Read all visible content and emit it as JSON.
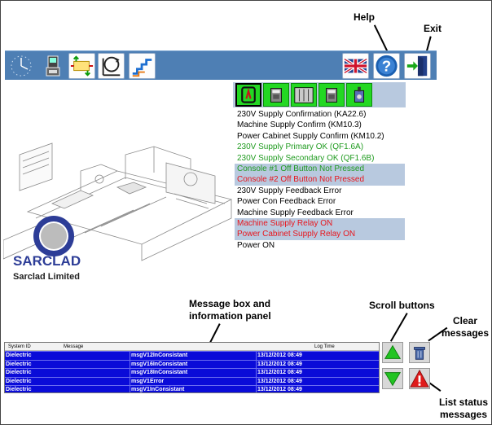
{
  "callouts": {
    "help": "Help",
    "exit": "Exit",
    "message_box": "Message box and information panel",
    "scroll_buttons": "Scroll buttons",
    "clear_messages": "Clear messages",
    "list_status": "List status messages"
  },
  "toolbar": {
    "items": [
      {
        "icon": "clock-icon"
      },
      {
        "icon": "console-icon"
      },
      {
        "icon": "transfer-icon"
      },
      {
        "icon": "rotation-process-icon"
      },
      {
        "icon": "level-chart-icon"
      }
    ],
    "right_items": [
      {
        "icon": "uk-flag-icon"
      },
      {
        "icon": "help-icon"
      },
      {
        "icon": "exit-door-icon"
      }
    ]
  },
  "tabs": [
    {
      "icon": "power-supply-icon",
      "selected": true
    },
    {
      "icon": "cabinet-icon",
      "selected": false
    },
    {
      "icon": "panel-icon",
      "selected": false
    },
    {
      "icon": "cabinet-icon",
      "selected": false
    },
    {
      "icon": "drive-icon",
      "selected": false
    }
  ],
  "status_items": [
    {
      "text": "230V Supply Confirmation (KA22.6)",
      "state": "normal",
      "highlight": false
    },
    {
      "text": "Machine Supply Confirm (KM10.3)",
      "state": "normal",
      "highlight": false
    },
    {
      "text": "Power Cabinet Supply Confirm (KM10.2)",
      "state": "normal",
      "highlight": false
    },
    {
      "text": "230V Supply Primary OK (QF1.6A)",
      "state": "ok",
      "highlight": false
    },
    {
      "text": "230V Supply Secondary OK (QF1.6B)",
      "state": "ok",
      "highlight": false
    },
    {
      "text": "Console #1 Off Button Not Pressed",
      "state": "ok",
      "highlight": true
    },
    {
      "text": "Console #2 Off Button Not Pressed",
      "state": "err",
      "highlight": true
    },
    {
      "text": "230V Supply Feedback Error",
      "state": "normal",
      "highlight": false
    },
    {
      "text": "Power Con Feedback Error",
      "state": "normal",
      "highlight": false
    },
    {
      "text": "Machine Supply Feedback Error",
      "state": "normal",
      "highlight": false
    },
    {
      "text": "Machine Supply Relay ON",
      "state": "err",
      "highlight": true
    },
    {
      "text": "Power Cabinet Supply Relay ON",
      "state": "err",
      "highlight": true
    },
    {
      "text": "Power ON",
      "state": "normal",
      "highlight": false
    }
  ],
  "branding": {
    "logo_text": "SARCLAD",
    "company": "Sarclad Limited"
  },
  "messages": {
    "headers": [
      "System ID",
      "Message",
      "Log Time"
    ],
    "rows": [
      [
        "Dielectric",
        "msgV12InConsistant",
        "13/12/2012 08:49"
      ],
      [
        "Dielectric",
        "msgV16InConsistant",
        "13/12/2012 08:49"
      ],
      [
        "Dielectric",
        "msgV18InConsistant",
        "13/12/2012 08:49"
      ],
      [
        "Dielectric",
        "msgV1Error",
        "13/12/2012 08:49"
      ],
      [
        "Dielectric",
        "msgV1InConsistant",
        "13/12/2012 08:49"
      ]
    ]
  },
  "side_buttons": [
    {
      "icon": "scroll-up-icon"
    },
    {
      "icon": "scroll-down-icon"
    },
    {
      "icon": "trash-icon"
    },
    {
      "icon": "warning-icon"
    }
  ],
  "colors": {
    "toolbar": "#4e7fb4",
    "highlight_row": "#b8c9df",
    "ok_text": "#1f9b1f",
    "error_text": "#e8151c",
    "message_row": "#0a0bd8",
    "tab_green": "#23d823"
  }
}
